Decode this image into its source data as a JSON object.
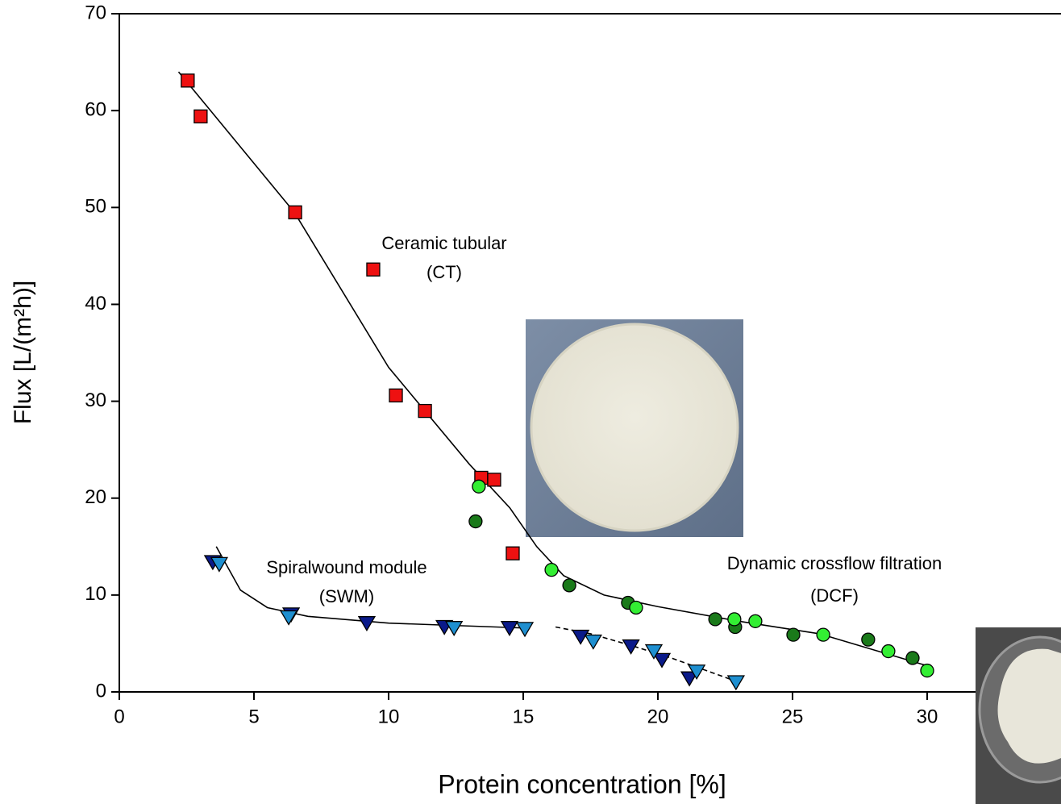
{
  "chart_data": {
    "type": "scatter",
    "xlabel": "Protein concentration [%]",
    "ylabel": "Flux [L/(m²h)]",
    "xlim": [
      0,
      35
    ],
    "ylim": [
      0,
      70
    ],
    "xticks": [
      0,
      5,
      10,
      15,
      20,
      25,
      30
    ],
    "yticks": [
      0,
      10,
      20,
      30,
      40,
      50,
      60,
      70
    ],
    "series": [
      {
        "marker": "square",
        "color": "#ee1111",
        "x": [
          2.54,
          3.02,
          6.53,
          9.43,
          10.27,
          11.35,
          13.44,
          13.92,
          14.61
        ],
        "values": [
          63.1,
          59.4,
          49.5,
          43.6,
          30.6,
          29.0,
          22.1,
          21.9,
          14.3
        ]
      },
      {
        "marker": "circle",
        "color": "#1a7a1a",
        "x": [
          13.23,
          16.71,
          18.89,
          22.13,
          22.87,
          25.03,
          27.81,
          29.46
        ],
        "values": [
          17.6,
          11.0,
          9.2,
          7.5,
          6.7,
          5.9,
          5.4,
          3.5
        ]
      },
      {
        "marker": "circle",
        "color": "#33ee33",
        "x": [
          13.35,
          16.05,
          19.19,
          22.84,
          23.62,
          26.14,
          28.56,
          30.0
        ],
        "values": [
          21.2,
          12.6,
          8.7,
          7.5,
          7.3,
          5.9,
          4.2,
          2.2
        ]
      },
      {
        "marker": "triangle",
        "color": "#0a1a8a",
        "x": [
          3.47,
          6.38,
          9.19,
          12.07,
          14.49,
          17.13,
          19.0,
          20.15,
          21.17
        ],
        "values": [
          13.4,
          8.0,
          7.1,
          6.7,
          6.6,
          5.7,
          4.7,
          3.3,
          1.4
        ]
      },
      {
        "marker": "triangle",
        "color": "#1e8fd0",
        "x": [
          3.71,
          6.29,
          12.43,
          15.06,
          17.6,
          19.85,
          21.44,
          22.9
        ],
        "values": [
          13.2,
          7.7,
          6.6,
          6.5,
          5.2,
          4.2,
          2.1,
          1.0
        ]
      }
    ],
    "fits": [
      {
        "dashed": false,
        "x": [
          2.2,
          6.5,
          10,
          13,
          14.5,
          15.5,
          16.5,
          18,
          20,
          23,
          26,
          30
        ],
        "values": [
          64,
          49.5,
          33.5,
          23.5,
          19,
          15,
          12,
          10,
          8.8,
          7.3,
          6,
          2.7
        ]
      },
      {
        "dashed": false,
        "x": [
          3.6,
          4.5,
          5.5,
          7,
          10,
          15
        ],
        "values": [
          15,
          10.5,
          8.7,
          7.8,
          7.1,
          6.6
        ]
      },
      {
        "dashed": true,
        "x": [
          16.2,
          17.5,
          19,
          20.5,
          22,
          23
        ],
        "values": [
          6.7,
          6.0,
          4.8,
          3.5,
          2.0,
          1.0
        ]
      }
    ],
    "annotations": [
      "Ceramic tubular",
      "(CT)",
      "Spiralwound module",
      "(SWM)",
      "Dynamic crossflow filtration",
      "(DCF)"
    ]
  }
}
